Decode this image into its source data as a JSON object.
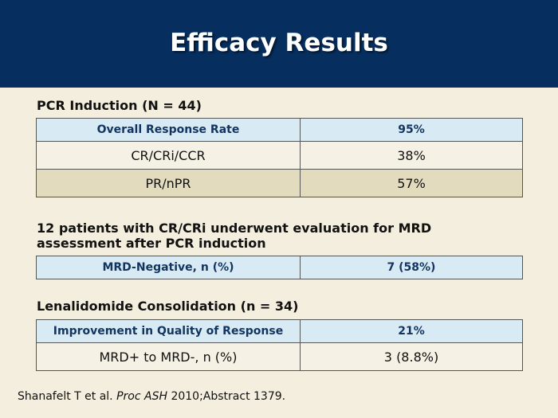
{
  "slide": {
    "title": "Efficacy Results"
  },
  "section1": {
    "heading": "PCR Induction (N = 44)",
    "header": [
      "Overall Response Rate",
      "95%"
    ],
    "rows": [
      [
        "CR/CRi/CCR",
        "38%"
      ],
      [
        "PR/nPR",
        "57%"
      ]
    ]
  },
  "section2": {
    "heading_line1": "12 patients with CR/CRi underwent evaluation for MRD",
    "heading_line2": "assessment after PCR induction",
    "header": [
      "MRD-Negative, n (%)",
      "7 (58%)"
    ]
  },
  "section3": {
    "heading": "Lenalidomide Consolidation (n = 34)",
    "header": [
      "Improvement in Quality of Response",
      "21%"
    ],
    "rows": [
      [
        "MRD+ to MRD-, n (%)",
        "3 (8.8%)"
      ]
    ]
  },
  "citation": {
    "authors": "Shanafelt T et al.",
    "journal": "Proc ASH",
    "rest": "2010;Abstract 1379."
  },
  "colors": {
    "header_bar": "#062f5f",
    "background": "#f3eedd",
    "table_header": "#d8ebf5",
    "row_tan": "#e3dbbd"
  }
}
